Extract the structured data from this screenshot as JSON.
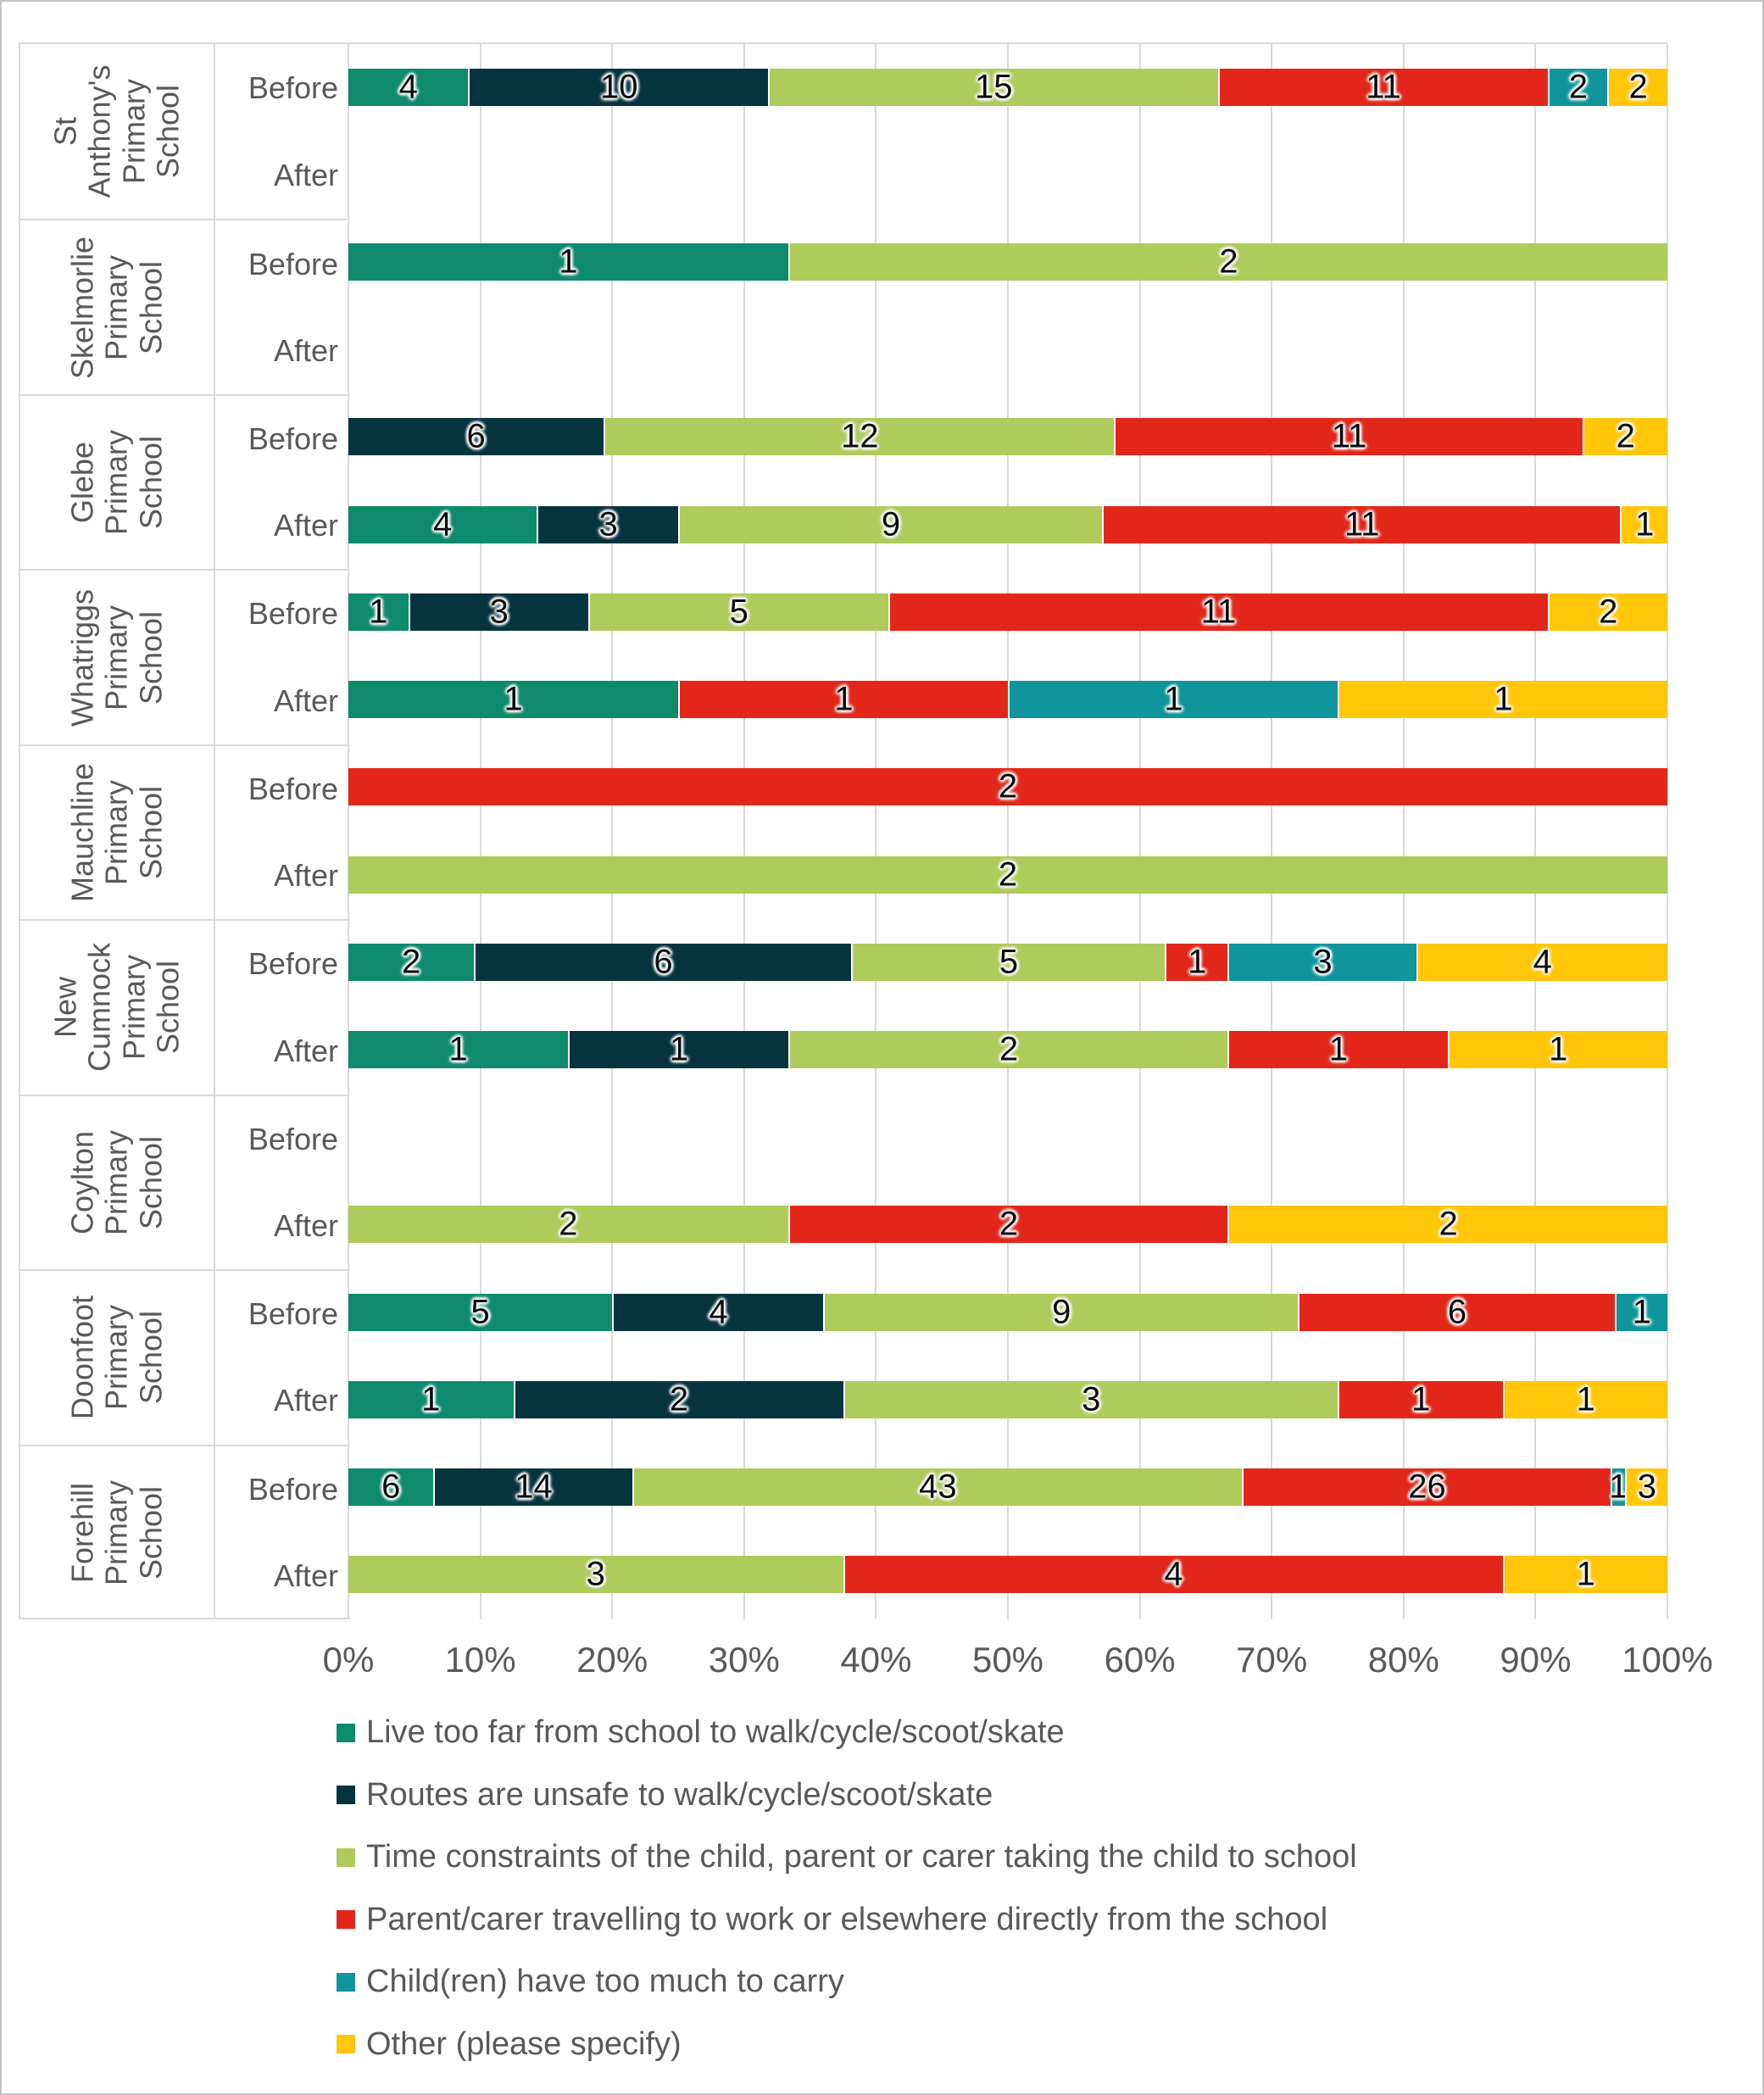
{
  "chart_data": {
    "type": "bar",
    "variant": "100pct-stacked-horizontal",
    "title": "",
    "xlabel": "",
    "ylabel": "",
    "x_axis": {
      "min": 0,
      "max": 100,
      "ticks": [
        "0%",
        "10%",
        "20%",
        "30%",
        "40%",
        "50%",
        "60%",
        "70%",
        "80%",
        "90%",
        "100%"
      ],
      "gridlines": true
    },
    "row_labels": {
      "before": "Before",
      "after": "After"
    },
    "series": [
      {
        "name": "Live too far from school to walk/cycle/scoot/skate",
        "color": "#0E8A6D"
      },
      {
        "name": "Routes are unsafe to walk/cycle/scoot/skate",
        "color": "#05343F"
      },
      {
        "name": "Time constraints of the child, parent or carer taking the child to school",
        "color": "#AECB5C"
      },
      {
        "name": "Parent/carer travelling to work or elsewhere directly from the school",
        "color": "#E2271A"
      },
      {
        "name": "Child(ren) have too much to carry",
        "color": "#0F959B"
      },
      {
        "name": "Other (please specify)",
        "color": "#FFC60A"
      }
    ],
    "legend_position": "bottom-left",
    "groups": [
      {
        "school": "St Anthony's Primary School",
        "before": [
          4,
          10,
          15,
          11,
          2,
          2
        ],
        "after": [
          0,
          0,
          0,
          0,
          0,
          0
        ]
      },
      {
        "school": "Skelmorlie Primary School",
        "before": [
          1,
          0,
          2,
          0,
          0,
          0
        ],
        "after": [
          0,
          0,
          0,
          0,
          0,
          0
        ]
      },
      {
        "school": "Glebe Primary School",
        "before": [
          0,
          6,
          12,
          11,
          0,
          2
        ],
        "after": [
          4,
          3,
          9,
          11,
          0,
          1
        ]
      },
      {
        "school": "Whatriggs Primary School",
        "before": [
          1,
          3,
          5,
          11,
          0,
          2
        ],
        "after": [
          1,
          0,
          0,
          1,
          1,
          1
        ]
      },
      {
        "school": "Mauchline Primary School",
        "before": [
          0,
          0,
          0,
          2,
          0,
          0
        ],
        "after": [
          0,
          0,
          2,
          0,
          0,
          0
        ]
      },
      {
        "school": "New Cumnock Primary School",
        "before": [
          2,
          6,
          5,
          1,
          3,
          4
        ],
        "after": [
          1,
          1,
          2,
          1,
          0,
          1
        ]
      },
      {
        "school": "Coylton Primary School",
        "before": [
          0,
          0,
          0,
          0,
          0,
          0
        ],
        "after": [
          0,
          0,
          2,
          2,
          0,
          2
        ]
      },
      {
        "school": "Doonfoot Primary School",
        "before": [
          5,
          4,
          9,
          6,
          1,
          0
        ],
        "after": [
          1,
          2,
          3,
          1,
          0,
          1
        ]
      },
      {
        "school": "Forehill Primary School",
        "before": [
          6,
          14,
          43,
          26,
          1,
          3
        ],
        "after": [
          0,
          0,
          3,
          4,
          0,
          1
        ]
      }
    ]
  },
  "style": {
    "grid_color": "#D9D9D9",
    "text_color": "#595959",
    "value_label_color": "#0A0A0A",
    "segment_border_color": "#FFFFFF"
  }
}
